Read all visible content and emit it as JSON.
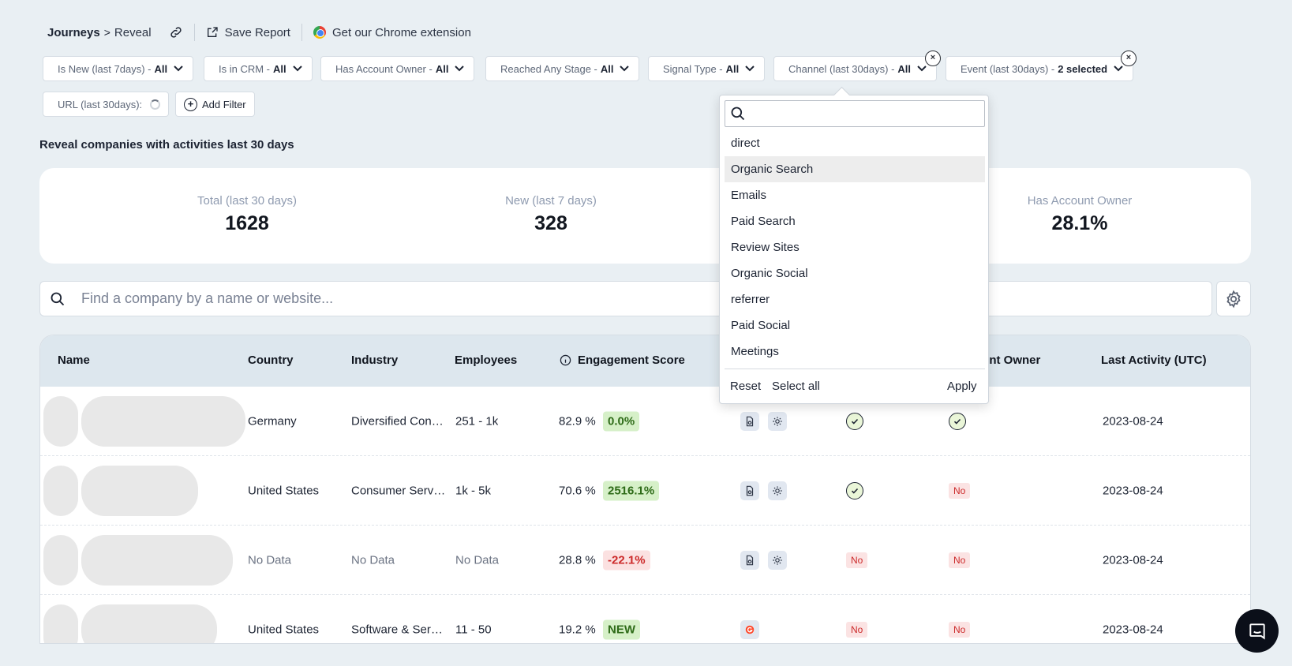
{
  "breadcrumb": {
    "parent": "Journeys",
    "separator": ">",
    "current": "Reveal"
  },
  "toolbar": {
    "save_report": "Save Report",
    "chrome_extension": "Get our Chrome extension"
  },
  "filters": [
    {
      "label": "Is New (last 7days) -",
      "value": "All"
    },
    {
      "label": "Is in CRM -",
      "value": "All"
    },
    {
      "label": "Has Account Owner -",
      "value": "All"
    },
    {
      "label": "Reached Any Stage -",
      "value": "All"
    },
    {
      "label": "Signal Type -",
      "value": "All"
    },
    {
      "label": "Channel (last 30days) -",
      "value": "All"
    },
    {
      "label": "Event (last 30days) -",
      "value": "2 selected"
    },
    {
      "label": "URL (last 30days):",
      "value": ""
    }
  ],
  "add_filter": "Add Filter",
  "section_title": "Reveal companies with activities last 30 days",
  "stats": [
    {
      "label": "Total (last 30 days)",
      "value": "1628"
    },
    {
      "label": "New (last 7 days)",
      "value": "328"
    },
    {
      "label": "Has Account Owner",
      "value": "28.1%"
    }
  ],
  "search": {
    "placeholder": "Find a company by a name or website..."
  },
  "table": {
    "columns": [
      "Name",
      "Country",
      "Industry",
      "Employees",
      "Engagement Score",
      "ount Owner",
      "Last Activity (UTC)"
    ],
    "rows": [
      {
        "country": "Germany",
        "industry": "Diversified Consumer Services",
        "employees": "251 - 1k",
        "score": "82.9 %",
        "change": "0.0%",
        "change_type": "green",
        "crm": "check",
        "owner": "check",
        "last_activity": "2023-08-24"
      },
      {
        "country": "United States",
        "industry": "Consumer Services",
        "employees": "1k - 5k",
        "score": "70.6 %",
        "change": "2516.1%",
        "change_type": "green",
        "crm": "check",
        "owner": "No",
        "last_activity": "2023-08-24"
      },
      {
        "country": "No Data",
        "industry": "No Data",
        "employees": "No Data",
        "score": "28.8 %",
        "change": "-22.1%",
        "change_type": "red",
        "crm": "No",
        "owner": "No",
        "last_activity": "2023-08-24"
      },
      {
        "country": "United States",
        "industry": "Software & Services",
        "employees": "11 - 50",
        "score": "19.2 %",
        "change": "NEW",
        "change_type": "green",
        "crm": "No",
        "owner": "No",
        "last_activity": "2023-08-24"
      }
    ]
  },
  "dropdown": {
    "search_value": "",
    "options": [
      "direct",
      "Organic Search",
      "Emails",
      "Paid Search",
      "Review Sites",
      "Organic Social",
      "referrer",
      "Paid Social",
      "Meetings"
    ],
    "highlighted": "Organic Search",
    "reset": "Reset",
    "select_all": "Select all",
    "apply": "Apply"
  },
  "colors": {
    "page_bg": "#e9eff3",
    "header_bg": "#dde7ee",
    "positive": "#d6f0c8",
    "negative": "#fbe1e1"
  }
}
